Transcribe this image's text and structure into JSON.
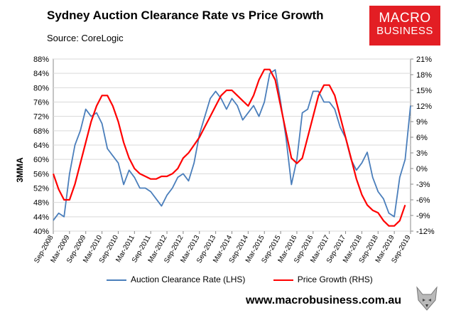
{
  "header": {
    "title": "Sydney Auction Clearance Rate vs Price Growth",
    "subtitle": "Source: CoreLogic"
  },
  "logo": {
    "line1": "MACRO",
    "line2": "BUSINESS"
  },
  "footer": {
    "website": "www.macrobusiness.com.au"
  },
  "colors": {
    "lhs": "#4a7ebb",
    "rhs": "#ff0000",
    "brand": "#e31e24"
  },
  "chart_data": {
    "type": "line",
    "title": "Sydney Auction Clearance Rate vs Price Growth",
    "ylabel": "3MMA",
    "grid": true,
    "legend": "bottom",
    "x_labels": [
      "Sep-2008",
      "Mar-2009",
      "Sep-2009",
      "Mar-2010",
      "Sep-2010",
      "Mar-2011",
      "Sep-2011",
      "Mar-2012",
      "Sep-2012",
      "Mar-2013",
      "Sep-2013",
      "Mar-2014",
      "Sep-2014",
      "Mar-2015",
      "Sep-2015",
      "Mar-2016",
      "Sep-2016",
      "Mar-2017",
      "Sep-2017",
      "Mar-2018",
      "Sep-2018",
      "Mar-2019",
      "Sep-2019"
    ],
    "y_left": {
      "range": [
        40,
        88
      ],
      "ticks": [
        "40%",
        "44%",
        "48%",
        "52%",
        "56%",
        "60%",
        "64%",
        "68%",
        "72%",
        "76%",
        "80%",
        "84%",
        "88%"
      ]
    },
    "y_right": {
      "range": [
        -12,
        21
      ],
      "ticks": [
        "-12%",
        "-9%",
        "-6%",
        "-3%",
        "0%",
        "3%",
        "6%",
        "9%",
        "12%",
        "15%",
        "18%",
        "21%"
      ]
    },
    "series": [
      {
        "name": "Auction Clearance Rate (LHS)",
        "axis": "left",
        "color": "#4a7ebb",
        "x": [
          "Sep-2008",
          "Nov-2008",
          "Jan-2009",
          "Mar-2009",
          "May-2009",
          "Jul-2009",
          "Sep-2009",
          "Nov-2009",
          "Jan-2010",
          "Mar-2010",
          "May-2010",
          "Jul-2010",
          "Sep-2010",
          "Nov-2010",
          "Jan-2011",
          "Mar-2011",
          "May-2011",
          "Jul-2011",
          "Sep-2011",
          "Nov-2011",
          "Jan-2012",
          "Mar-2012",
          "May-2012",
          "Jul-2012",
          "Sep-2012",
          "Nov-2012",
          "Jan-2013",
          "Mar-2013",
          "May-2013",
          "Jul-2013",
          "Sep-2013",
          "Nov-2013",
          "Jan-2014",
          "Mar-2014",
          "May-2014",
          "Jul-2014",
          "Sep-2014",
          "Nov-2014",
          "Jan-2015",
          "Mar-2015",
          "May-2015",
          "Jul-2015",
          "Sep-2015",
          "Nov-2015",
          "Jan-2016",
          "Mar-2016",
          "May-2016",
          "Jul-2016",
          "Sep-2016",
          "Nov-2016",
          "Jan-2017",
          "Mar-2017",
          "May-2017",
          "Jul-2017",
          "Sep-2017",
          "Nov-2017",
          "Jan-2018",
          "Mar-2018",
          "May-2018",
          "Jul-2018",
          "Sep-2018",
          "Nov-2018",
          "Jan-2019",
          "Mar-2019",
          "May-2019",
          "Jul-2019",
          "Sep-2019"
        ],
        "values": [
          43,
          45,
          44,
          56,
          64,
          68,
          74,
          72,
          73,
          70,
          63,
          61,
          59,
          53,
          57,
          55,
          52,
          52,
          51,
          49,
          47,
          50,
          52,
          55,
          56,
          54,
          59,
          67,
          72,
          77,
          79,
          77,
          74,
          77,
          75,
          71,
          73,
          75,
          72,
          76,
          84,
          85,
          76,
          66,
          53,
          60,
          73,
          74,
          79,
          79,
          76,
          76,
          74,
          69,
          66,
          60,
          57,
          59,
          62,
          55,
          51,
          49,
          45,
          44,
          55,
          60,
          75
        ]
      },
      {
        "name": "Price Growth (RHS)",
        "axis": "right",
        "color": "#ff0000",
        "x": [
          "Sep-2008",
          "Nov-2008",
          "Jan-2009",
          "Mar-2009",
          "May-2009",
          "Jul-2009",
          "Sep-2009",
          "Nov-2009",
          "Jan-2010",
          "Mar-2010",
          "May-2010",
          "Jul-2010",
          "Sep-2010",
          "Nov-2010",
          "Jan-2011",
          "Mar-2011",
          "May-2011",
          "Jul-2011",
          "Sep-2011",
          "Nov-2011",
          "Jan-2012",
          "Mar-2012",
          "May-2012",
          "Jul-2012",
          "Sep-2012",
          "Nov-2012",
          "Jan-2013",
          "Mar-2013",
          "May-2013",
          "Jul-2013",
          "Sep-2013",
          "Nov-2013",
          "Jan-2014",
          "Mar-2014",
          "May-2014",
          "Jul-2014",
          "Sep-2014",
          "Nov-2014",
          "Jan-2015",
          "Mar-2015",
          "May-2015",
          "Jul-2015",
          "Sep-2015",
          "Nov-2015",
          "Jan-2016",
          "Mar-2016",
          "May-2016",
          "Jul-2016",
          "Sep-2016",
          "Nov-2016",
          "Jan-2017",
          "Mar-2017",
          "May-2017",
          "Jul-2017",
          "Sep-2017",
          "Nov-2017",
          "Jan-2018",
          "Mar-2018",
          "May-2018",
          "Jul-2018",
          "Sep-2018",
          "Nov-2018",
          "Jan-2019",
          "Mar-2019",
          "May-2019",
          "Jul-2019"
        ],
        "values": [
          -1,
          -4,
          -6,
          -6,
          -3,
          1,
          5,
          9,
          12,
          14,
          14,
          12,
          9,
          5,
          2,
          0,
          -1,
          -1.5,
          -2,
          -2,
          -1.5,
          -1.5,
          -1,
          0,
          2,
          3,
          4.5,
          6,
          8,
          10,
          12,
          14,
          15,
          15,
          14,
          13,
          12,
          14,
          17,
          19,
          19,
          17,
          12,
          7,
          2,
          1,
          2,
          6,
          10,
          14,
          16,
          16,
          14,
          10,
          6,
          2,
          -2,
          -5,
          -7,
          -8,
          -8.5,
          -10,
          -11,
          -11,
          -10,
          -7
        ]
      }
    ]
  }
}
